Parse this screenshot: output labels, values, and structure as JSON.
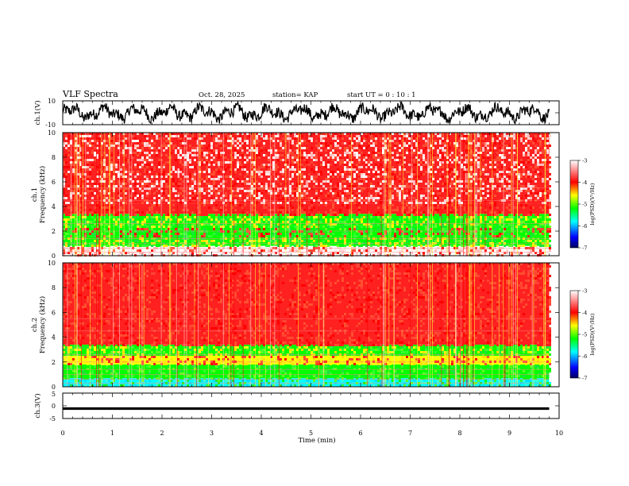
{
  "header": {
    "title": "VLF Spectra",
    "date": "Oct. 28, 2025",
    "station": "station= KAP",
    "start": "start  UT =   0  : 10 : 1"
  },
  "chart_data": [
    {
      "type": "line",
      "name": "ch1-waveform",
      "title": "",
      "ylabel": "ch.1(V)",
      "ylim": [
        -10,
        10
      ],
      "yticks": [
        "10",
        "-10"
      ],
      "xlim": [
        0,
        10
      ],
      "trace": "noisy waveform, roughly within -8 to 8 V over 0–9.8 min"
    },
    {
      "type": "heatmap",
      "name": "ch1-spectrogram",
      "ylabel": "ch.1\nFrequency (kHz)",
      "ylabel_line1": "ch.1",
      "ylabel_line2": "Frequency (kHz)",
      "ylim": [
        0,
        10
      ],
      "yticks": [
        "0",
        "2",
        "4",
        "6",
        "8",
        "10"
      ],
      "xlim": [
        0,
        10
      ],
      "data_extent_min": 9.8,
      "bands": [
        {
          "from": 0,
          "to": 0.8,
          "level": "white-red"
        },
        {
          "from": 0.8,
          "to": 1.6,
          "level": "green-yellow"
        },
        {
          "from": 1.6,
          "to": 2.4,
          "level": "green-red"
        },
        {
          "from": 2.4,
          "to": 3.4,
          "level": "green-yellow"
        },
        {
          "from": 3.4,
          "to": 4.2,
          "level": "red"
        },
        {
          "from": 4.2,
          "to": 10,
          "level": "red-white"
        }
      ],
      "colorbar": {
        "label": "log(PSD)(V²/Hz)",
        "ticks": [
          "-3",
          "-4",
          "-5",
          "-6",
          "-7"
        ],
        "range": [
          -7,
          -3
        ]
      }
    },
    {
      "type": "heatmap",
      "name": "ch2-spectrogram",
      "ylabel": "ch.2\nFrequency (kHz)",
      "ylabel_line1": "ch.2",
      "ylabel_line2": "Frequency (kHz)",
      "ylim": [
        0,
        10
      ],
      "yticks": [
        "0",
        "2",
        "4",
        "6",
        "8",
        "10"
      ],
      "xlim": [
        0,
        10
      ],
      "data_extent_min": 9.8,
      "bands": [
        {
          "from": 0,
          "to": 0.7,
          "level": "cyan-green"
        },
        {
          "from": 0.7,
          "to": 1.8,
          "level": "green"
        },
        {
          "from": 1.8,
          "to": 2.5,
          "level": "yellow-red"
        },
        {
          "from": 2.5,
          "to": 3.4,
          "level": "green-yellow"
        },
        {
          "from": 3.4,
          "to": 10,
          "level": "red"
        }
      ],
      "colorbar": {
        "label": "log(PSD)(V²/Hz)",
        "ticks": [
          "-3",
          "-4",
          "-5",
          "-6",
          "-7"
        ],
        "range": [
          -7,
          -3
        ]
      }
    },
    {
      "type": "line",
      "name": "ch3-waveform",
      "ylabel": "ch.3(V)",
      "ylim": [
        -5,
        5
      ],
      "yticks": [
        "5",
        "0",
        "-5"
      ],
      "xlim": [
        0,
        10
      ],
      "trace": "thick flat band near -1 V across 0–9.8 min"
    }
  ],
  "xaxis": {
    "label": "Time (min)",
    "ticks": [
      "0",
      "1",
      "2",
      "3",
      "4",
      "5",
      "6",
      "7",
      "8",
      "9",
      "10"
    ]
  },
  "colors": {
    "scale": [
      "#000070",
      "#0000ff",
      "#00ffff",
      "#00ff00",
      "#ffff00",
      "#ff0000",
      "#ffffff"
    ]
  }
}
